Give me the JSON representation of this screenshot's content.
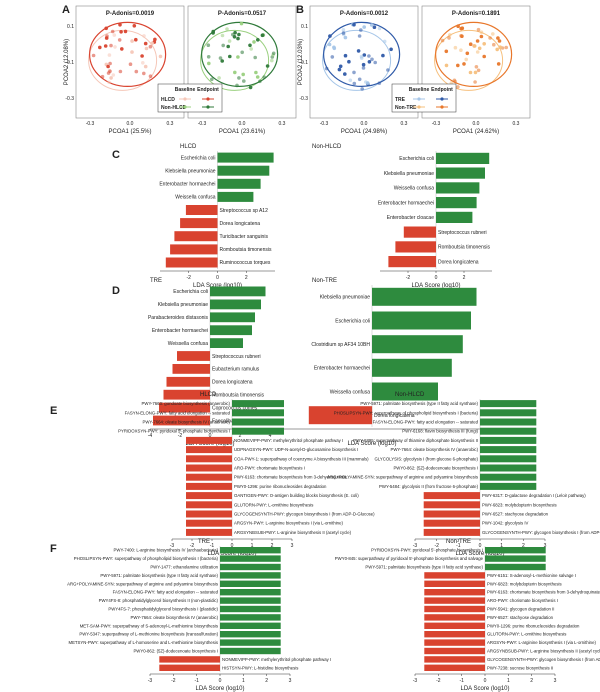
{
  "figure": {
    "panel_letters": [
      "A",
      "B",
      "C",
      "D",
      "E",
      "F"
    ]
  },
  "colors": {
    "green": "#2e8b3e",
    "red": "#d9432f",
    "baseline_fill": "#f5c7b8",
    "pink": "#e3758a",
    "blue": "#2f5aa8",
    "lightblue": "#a6c6e8",
    "orange": "#e8772b",
    "lightorange": "#f6c07e",
    "darkgreen": "#2f7a3a",
    "lightgreen": "#9ad07f"
  },
  "chart_data": [
    {
      "id": "A",
      "type": "scatter",
      "xlabel_left": "PCOA1 (25.5%)",
      "xlabel_right": "PCOA1 (23.61%)",
      "ylabel": "PCOA2 (12.08%)",
      "subplot_titles": [
        "P-Adonis=0.0019",
        "P-Adonis=0.0517"
      ],
      "legend": {
        "header_baseline": "Baseline",
        "header_endpoint": "Endpoint",
        "rows": [
          "HLCD",
          "Non-HLCD"
        ]
      },
      "yticks": [
        "0.1",
        "-0.1",
        "-0.3"
      ],
      "xticks_left": [
        "-0.3",
        "0.0",
        "0.3"
      ],
      "xticks_right": [
        "-0.3",
        "0.0",
        "0.3"
      ]
    },
    {
      "id": "B",
      "type": "scatter",
      "xlabel_left": "PCOA1 (24.98%)",
      "xlabel_right": "PCOA1 (24.62%)",
      "ylabel": "PCOA2 (12.03%)",
      "subplot_titles": [
        "P-Adonis=0.0012",
        "P-Adonis=0.1891"
      ],
      "legend": {
        "header_baseline": "Baseline",
        "header_endpoint": "Endpoint",
        "rows": [
          "TRE",
          "Non-TRE"
        ]
      },
      "yticks": [
        "0.1",
        "-0.1",
        "-0.3"
      ],
      "xticks_left": [
        "-0.3",
        "0.0",
        "0.3"
      ],
      "xticks_right": [
        "-0.3",
        "0.0",
        "0.3"
      ]
    },
    {
      "id": "C",
      "type": "bar",
      "xlabel": "LDA Score (log10)",
      "subplots": [
        {
          "title": "HLCD",
          "xlim": [
            -4,
            4
          ],
          "xticks": [
            "-2",
            "0",
            "2"
          ],
          "categories": [
            "Escherichia coli",
            "Klebsiella pneumoniae",
            "Enterobacter hormaechei",
            "Weissella confusa",
            "Streptococcus sp A12",
            "Dorea longicatena",
            "Turicibacter sanguinis",
            "Romboutsia timonensis",
            "Ruminococcus torques"
          ],
          "values": [
            3.9,
            3.6,
            3.0,
            2.5,
            -2.2,
            -2.6,
            -3.0,
            -3.3,
            -3.6
          ]
        },
        {
          "title": "Non-HLCD",
          "xlim": [
            -4,
            4
          ],
          "xticks": [
            "-2",
            "0",
            "2"
          ],
          "categories": [
            "Escherichia coli",
            "Klebsiella pneumoniae",
            "Weissella confusa",
            "Enterobacter hormaechei",
            "Enterobacter cloacae",
            "Streptococcus rubneri",
            "Romboutsia timonensis",
            "Dorea longicatena"
          ],
          "values": [
            3.8,
            3.5,
            3.1,
            2.9,
            2.6,
            -2.3,
            -2.9,
            -3.4
          ]
        }
      ]
    },
    {
      "id": "D",
      "type": "bar",
      "xlabel": "LDA Score (log10)",
      "subplots": [
        {
          "title": "TRE",
          "xlim": [
            -4,
            4
          ],
          "xticks": [
            "-4",
            "-2",
            "0",
            "2",
            "4"
          ],
          "categories": [
            "Escherichia coli",
            "Klebsiella pneumoniae",
            "Parabacteroides distasonis",
            "Enterobacter hormaechei",
            "Weissella confusa",
            "Streptococcus rubneri",
            "Eubacterium ramulus",
            "Dorea longicatena",
            "Romboutsia timonensis",
            "Coprococcus comes",
            "Faecalibacterium prausnitzii"
          ],
          "values": [
            3.7,
            3.4,
            3.0,
            2.8,
            2.2,
            -2.2,
            -2.5,
            -2.9,
            -3.1,
            -3.4,
            -3.8
          ]
        },
        {
          "title": "Non-TRE",
          "xlim": [
            -4,
            4
          ],
          "xticks": [],
          "categories": [
            "Klebsiella pneumoniae",
            "Escherichia coli",
            "Clostridium sp AF34 10BH",
            "Enterobacter hormaechei",
            "Weissella confusa",
            "Dorea longicatena"
          ],
          "values": [
            3.8,
            3.6,
            3.3,
            2.9,
            2.4,
            -2.3
          ]
        }
      ]
    },
    {
      "id": "E",
      "type": "bar",
      "xlabel": "LDA Score (log10)",
      "subplots": [
        {
          "title": "HLCD",
          "xlim": [
            -3,
            3
          ],
          "xticks": [
            "-3",
            "-2",
            "-1",
            "0",
            "1",
            "2",
            "3"
          ],
          "categories": [
            "PWY-7663: gondoate biosynthesis (anaerobic)",
            "FASYN-ELONG-PWY: fatty acid elongation -- saturated",
            "PWY-7664: oleate biosynthesis IV (anaerobic)",
            "PYRIDOXSYN-PWY: pyridoxal 5'-phosphate biosynthesis I",
            "NONMEVIPP-PWY: methylerythritol phosphate pathway I",
            "UDPNAGSYN-PWY: UDP-N-acetyl-D-glucosamine biosynthesis I",
            "COA-PWY-1: superpathway of coenzyme A biosynthesis III (mammals)",
            "ARO-PWY: chorismate biosynthesis I",
            "PWY-6163: chorismate biosynthesis from 3-dehydroquinate",
            "PWY0-1296: purine ribonucleosides degradation",
            "OANTIGEN-PWY: O-antigen building blocks biosynthesis (E. coli)",
            "GLUTORN-PWY: L-ornithine biosynthesis",
            "GLYCOGENSYNTH-PWY: glycogen biosynthesis I (from ADP-D-Glucose)",
            "ARGSYN-PWY: L-arginine biosynthesis I (via L-ornithine)",
            "ARGSYNBSUB-PWY: L-arginine biosynthesis II (acetyl cycle)"
          ],
          "values": [
            2.6,
            2.6,
            2.6,
            2.6,
            -2.3,
            -2.3,
            -2.3,
            -2.3,
            -2.3,
            -2.3,
            -2.3,
            -2.3,
            -2.3,
            -2.3,
            -2.3
          ]
        },
        {
          "title": "Non-HLCD",
          "xlim": [
            -3,
            3
          ],
          "xticks": [
            "-3",
            "-2",
            "-1",
            "0",
            "1",
            "2",
            "3"
          ],
          "categories": [
            "PWY-5971: palmitate biosynthesis (type II fatty acid synthase)",
            "PHOSLIPSYN-PWY: superpathway of phospholipid biosynthesis I (bacteria)",
            "FASYN-ELONG-PWY: fatty acid elongation -- saturated",
            "PWY-6168: flavin biosynthesis III (fungi)",
            "PWY-6895: superpathway of thiamine diphosphate biosynthesis II",
            "PWY-7664: oleate biosynthesis IV (anaerobic)",
            "GLYCOLYSIS: glycolysis I (from glucose 6-phosphate)",
            "PWY0-862: (5Z)-dodecenoate biosynthesis I",
            "ARG+POLYAMINE-SYN: superpathway of arginine and polyamine biosynthesis",
            "PWY-5484: glycolysis II (from fructose 6-phosphate)",
            "PWY-6317: D-galactose degradation I (Leloir pathway)",
            "PWY-6823: molybdopterin biosynthesis",
            "PWY-6527: stachyose degradation",
            "PWY-1042: glycolysis IV",
            "GLYCOGENSYNTH-PWY: glycogen biosynthesis I (from ADP-D-Glucose)"
          ],
          "values": [
            2.6,
            2.6,
            2.6,
            2.6,
            2.6,
            2.6,
            2.6,
            2.6,
            2.6,
            2.6,
            -2.6,
            -2.6,
            -2.6,
            -2.6,
            -2.6
          ]
        }
      ]
    },
    {
      "id": "F",
      "type": "bar",
      "xlabel": "LDA Score (log10)",
      "subplots": [
        {
          "title": "TRE",
          "xlim": [
            -3,
            3
          ],
          "xticks": [
            "-3",
            "-2",
            "-1",
            "0",
            "1",
            "2",
            "3"
          ],
          "categories": [
            "PWY-7400: L-arginine biosynthesis IV (archaebacteria)",
            "PHOSLIPSYN-PWY: superpathway of phospholipid biosynthesis I (bacteria)",
            "PWY-1477: ethanolamine utilization",
            "PWY-5971: palmitate biosynthesis (type II fatty acid synthase)",
            "ARG+POLYAMINE-SYN: superpathway of arginine and polyamine biosynthesis",
            "FASYN-ELONG-PWY: fatty acid elongation -- saturated",
            "PWY4FS-8: phosphatidylglycerol biosynthesis II (non-plastidic)",
            "PWY4FS-7: phosphatidylglycerol biosynthesis I (plastidic)",
            "PWY-7664: oleate biosynthesis IV (anaerobic)",
            "MET-SAM-PWY: superpathway of S-adenosyl-L-methionine biosynthesis",
            "PWY-5347: superpathway of L-methionine biosynthesis (transsulfuration)",
            "METSYN-PWY: superpathway of L-homoserine and L-methionine biosynthesis",
            "PWY0-862: (5Z)-dodecenoate biosynthesis I",
            "NONMEVIPP-PWY: methylerythritol phosphate pathway I",
            "HISTSYN-PWY: L-histidine biosynthesis"
          ],
          "values": [
            2.6,
            2.6,
            2.6,
            2.6,
            2.6,
            2.6,
            2.6,
            2.6,
            2.6,
            2.6,
            2.6,
            2.6,
            2.6,
            -2.6,
            -2.6
          ]
        },
        {
          "title": "Non-TRE",
          "xlim": [
            -3,
            3
          ],
          "xticks": [
            "-3",
            "-2",
            "-1",
            "0",
            "1",
            "2",
            "3"
          ],
          "categories": [
            "PYRIDOXSYN-PWY: pyridoxal 5'-phosphate biosynthesis I",
            "PWY0-845: superpathway of pyridoxal 5'-phosphate biosynthesis and salvage",
            "PWY-5971: palmitate biosynthesis (type II fatty acid synthase)",
            "PWY-6151: S-adenosyl-L-methionine salvage I",
            "PWY-6823: molybdopterin biosynthesis",
            "PWY-6163: chorismate biosynthesis from 3-dehydroquinate",
            "ARO-PWY: chorismate biosynthesis I",
            "PWY-5941: glycogen degradation II",
            "PWY-6527: stachyose degradation",
            "PWY0-1296: purine ribonucleosides degradation",
            "GLUTORN-PWY: L-ornithine biosynthesis",
            "ARGSYN-PWY: L-arginine biosynthesis I (via L-ornithine)",
            "ARGSYNBSUB-PWY: L-arginine biosynthesis II (acetyl cycle)",
            "GLYCOGENSYNTH-PWY: glycogen biosynthesis I (from ADP-D-Glucose)",
            "PWY-7238: sucrose biosynthesis II"
          ],
          "values": [
            2.6,
            2.6,
            2.6,
            -2.6,
            -2.6,
            -2.6,
            -2.6,
            -2.6,
            -2.6,
            -2.6,
            -2.6,
            -2.6,
            -2.6,
            -2.6,
            -2.6
          ]
        }
      ]
    }
  ]
}
